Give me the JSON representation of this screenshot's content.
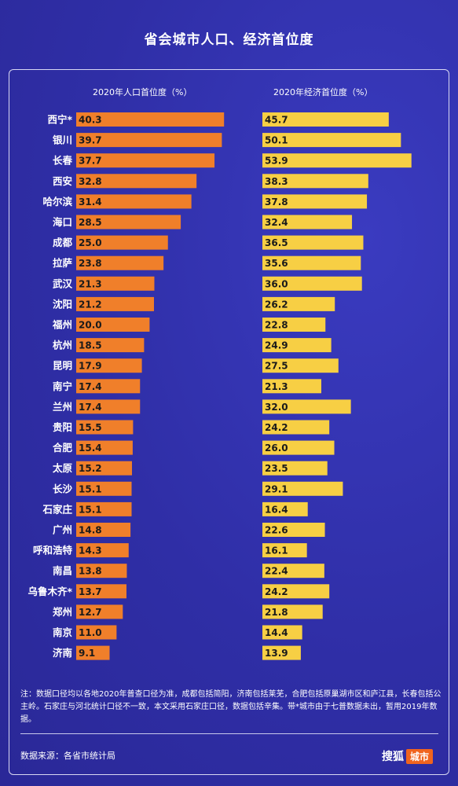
{
  "title": "省会城市人口、经济首位度",
  "header_left": "2020年人口首位度（%）",
  "header_right": "2020年经济首位度（%）",
  "note": "注：数据口径均以各地2020年普查口径为准，成都包括简阳，济南包括莱芜，合肥包括原巢湖市区和庐江县，长春包括公主岭。石家庄与河北统计口径不一致，本文采用石家庄口径，数据包括辛集。带*城市由于七普数据未出，暂用2019年数据。",
  "source": "数据来源：各省市统计局",
  "logo": {
    "text": "搜狐",
    "badge": "城市"
  },
  "colors": {
    "background": "#2f2ea6",
    "population_bar": "#f07f2a",
    "economy_bar": "#f7cf44"
  },
  "chart_data": [
    {
      "type": "bar",
      "orientation": "horizontal",
      "title": "2020年人口首位度（%）",
      "categories": [
        "西宁*",
        "银川",
        "长春",
        "西安",
        "哈尔滨",
        "海口",
        "成都",
        "拉萨",
        "武汉",
        "沈阳",
        "福州",
        "杭州",
        "昆明",
        "南宁",
        "兰州",
        "贵阳",
        "合肥",
        "太原",
        "长沙",
        "石家庄",
        "广州",
        "呼和浩特",
        "南昌",
        "乌鲁木齐*",
        "郑州",
        "南京",
        "济南"
      ],
      "values": [
        40.3,
        39.7,
        37.7,
        32.8,
        31.4,
        28.5,
        25.0,
        23.8,
        21.3,
        21.2,
        20.0,
        18.5,
        17.9,
        17.4,
        17.4,
        15.5,
        15.4,
        15.2,
        15.1,
        15.1,
        14.8,
        14.3,
        13.8,
        13.7,
        12.7,
        11.0,
        9.1
      ],
      "labels": [
        "40.3",
        "39.7",
        "37.7",
        "32.8",
        "31.4",
        "28.5",
        "25.0",
        "23.8",
        "21.3",
        "21.2",
        "20.0",
        "18.5",
        "17.9",
        "17.4",
        "17.4",
        "15.5",
        "15.4",
        "15.2",
        "15.1",
        "15.1",
        "14.8",
        "14.3",
        "13.8",
        "13.7",
        "12.7",
        "11.0",
        "9.1"
      ]
    },
    {
      "type": "bar",
      "orientation": "horizontal",
      "title": "2020年经济首位度（%）",
      "categories": [
        "西宁*",
        "银川",
        "长春",
        "西安",
        "哈尔滨",
        "海口",
        "成都",
        "拉萨",
        "武汉",
        "沈阳",
        "福州",
        "杭州",
        "昆明",
        "南宁",
        "兰州",
        "贵阳",
        "合肥",
        "太原",
        "长沙",
        "石家庄",
        "广州",
        "呼和浩特",
        "南昌",
        "乌鲁木齐*",
        "郑州",
        "南京",
        "济南"
      ],
      "values": [
        45.7,
        50.1,
        53.9,
        38.3,
        37.8,
        32.4,
        36.5,
        35.6,
        36.0,
        26.2,
        22.8,
        24.9,
        27.5,
        21.3,
        32.0,
        24.2,
        26.0,
        23.5,
        29.1,
        16.4,
        22.6,
        16.1,
        22.4,
        24.2,
        21.8,
        14.4,
        13.9
      ],
      "labels": [
        "45.7",
        "50.1",
        "53.9",
        "38.3",
        "37.8",
        "32.4",
        "36.5",
        "35.6",
        "36.0",
        "26.2",
        "22.8",
        "24.9",
        "27.5",
        "21.3",
        "32.0",
        "24.2",
        "26.0",
        "23.5",
        "29.1",
        "16.4",
        "22.6",
        "16.1",
        "22.4",
        "24.2",
        "21.8",
        "14.4",
        "13.9"
      ]
    }
  ]
}
